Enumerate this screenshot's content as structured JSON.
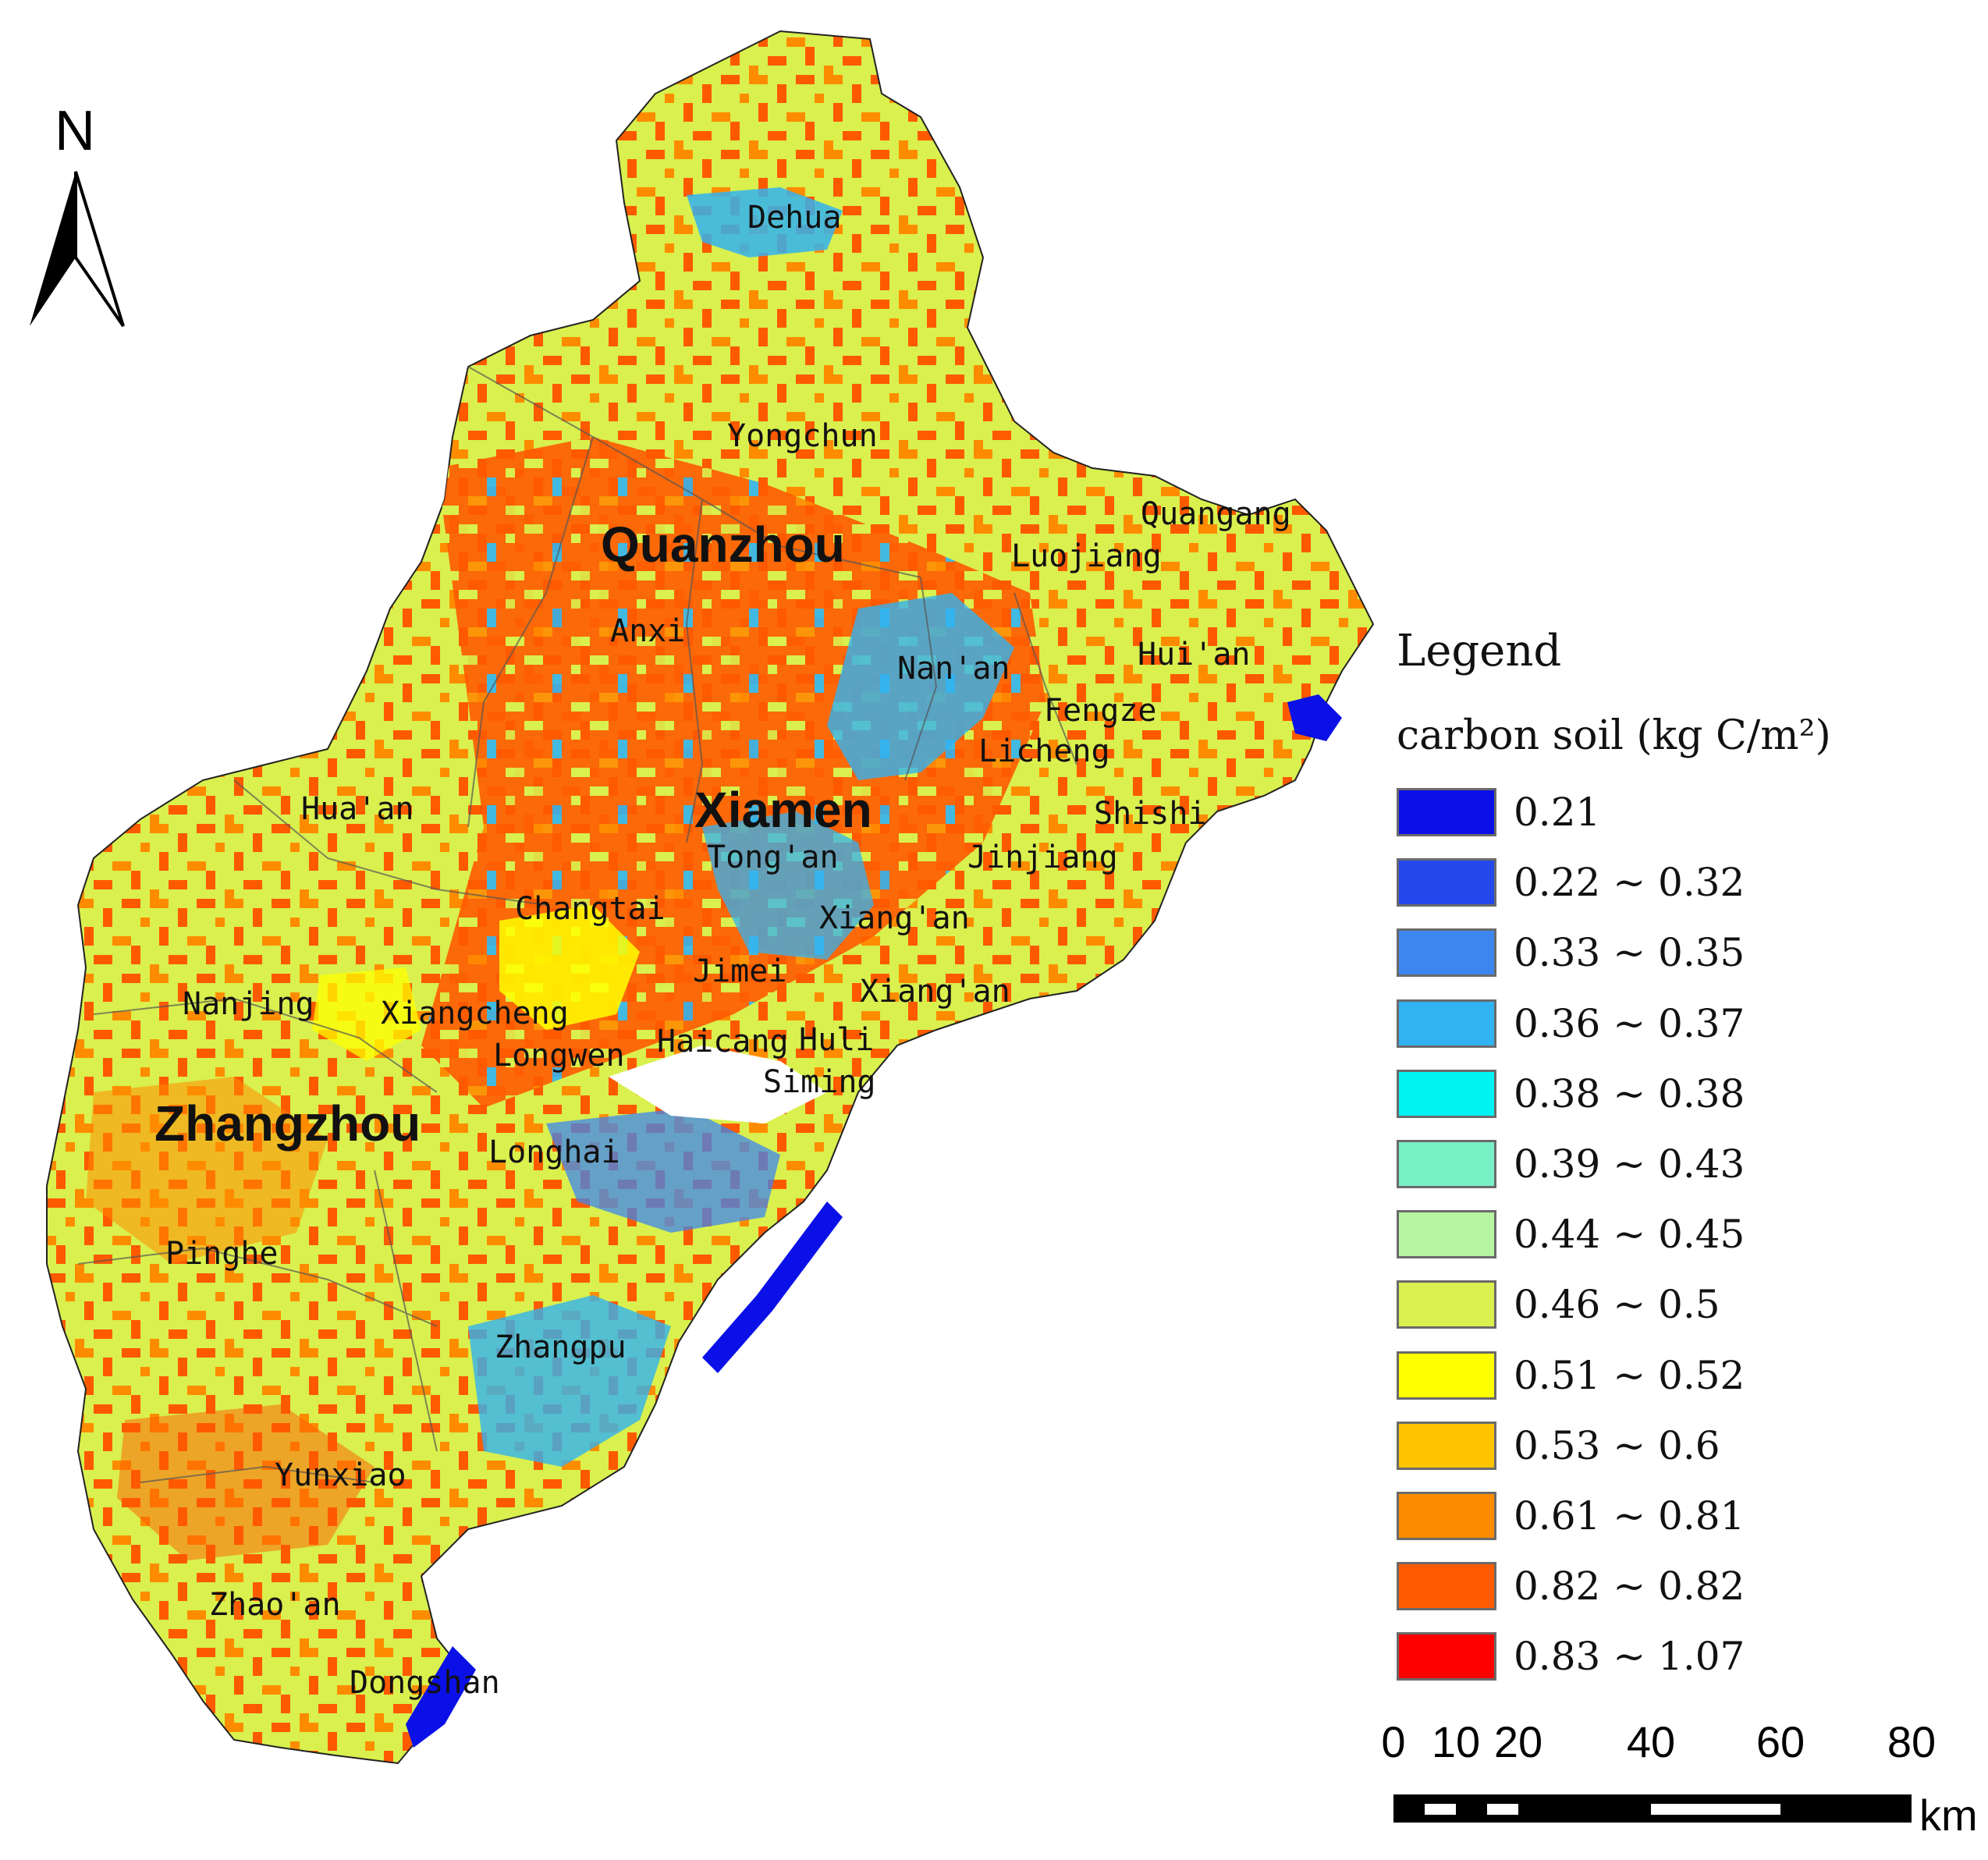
{
  "map": {
    "north_label": "N",
    "cities": [
      {
        "name": "Quanzhou"
      },
      {
        "name": "Xiamen"
      },
      {
        "name": "Zhangzhou"
      }
    ],
    "places": [
      {
        "name": "Dehua"
      },
      {
        "name": "Yongchun"
      },
      {
        "name": "Quangang"
      },
      {
        "name": "Luojiang"
      },
      {
        "name": "Anxi"
      },
      {
        "name": "Hui'an"
      },
      {
        "name": "Nan'an"
      },
      {
        "name": "Fengze"
      },
      {
        "name": "Licheng"
      },
      {
        "name": "Shishi"
      },
      {
        "name": "Hua'an"
      },
      {
        "name": "Tong'an"
      },
      {
        "name": "Jinjiang"
      },
      {
        "name": "Changtai"
      },
      {
        "name": "Xiang'an"
      },
      {
        "name": "Jimei"
      },
      {
        "name": "Xiang'an"
      },
      {
        "name": "Nanjing"
      },
      {
        "name": "Xiangcheng"
      },
      {
        "name": "Longwen"
      },
      {
        "name": "Haicang"
      },
      {
        "name": "Huli"
      },
      {
        "name": "Siming"
      },
      {
        "name": "Longhai"
      },
      {
        "name": "Pinghe"
      },
      {
        "name": "Zhangpu"
      },
      {
        "name": "Yunxiao"
      },
      {
        "name": "Zhao'an"
      },
      {
        "name": "Dongshan"
      }
    ]
  },
  "legend": {
    "title": "Legend",
    "subtitle": "carbon soil (kg C/m²)",
    "items": [
      {
        "label": "0.21",
        "color": "#0a10e6"
      },
      {
        "label": "0.22 ~ 0.32",
        "color": "#2448ec"
      },
      {
        "label": "0.33 ~ 0.35",
        "color": "#3d86f0"
      },
      {
        "label": "0.36 ~ 0.37",
        "color": "#31b3f1"
      },
      {
        "label": "0.38 ~ 0.38",
        "color": "#00f2f2"
      },
      {
        "label": "0.39 ~ 0.43",
        "color": "#78f0c6"
      },
      {
        "label": "0.44 ~ 0.45",
        "color": "#b8f5a0"
      },
      {
        "label": "0.46 ~ 0.5",
        "color": "#d9f04e"
      },
      {
        "label": "0.51 ~ 0.52",
        "color": "#ffff00"
      },
      {
        "label": "0.53 ~ 0.6",
        "color": "#ffc400"
      },
      {
        "label": "0.61 ~ 0.81",
        "color": "#ff8c00"
      },
      {
        "label": "0.82 ~ 0.82",
        "color": "#ff5a00"
      },
      {
        "label": "0.83 ~ 1.07",
        "color": "#ff0000"
      }
    ]
  },
  "scale_bar": {
    "ticks": [
      "0",
      "10",
      "20",
      "40",
      "60",
      "80"
    ],
    "unit": "km"
  }
}
